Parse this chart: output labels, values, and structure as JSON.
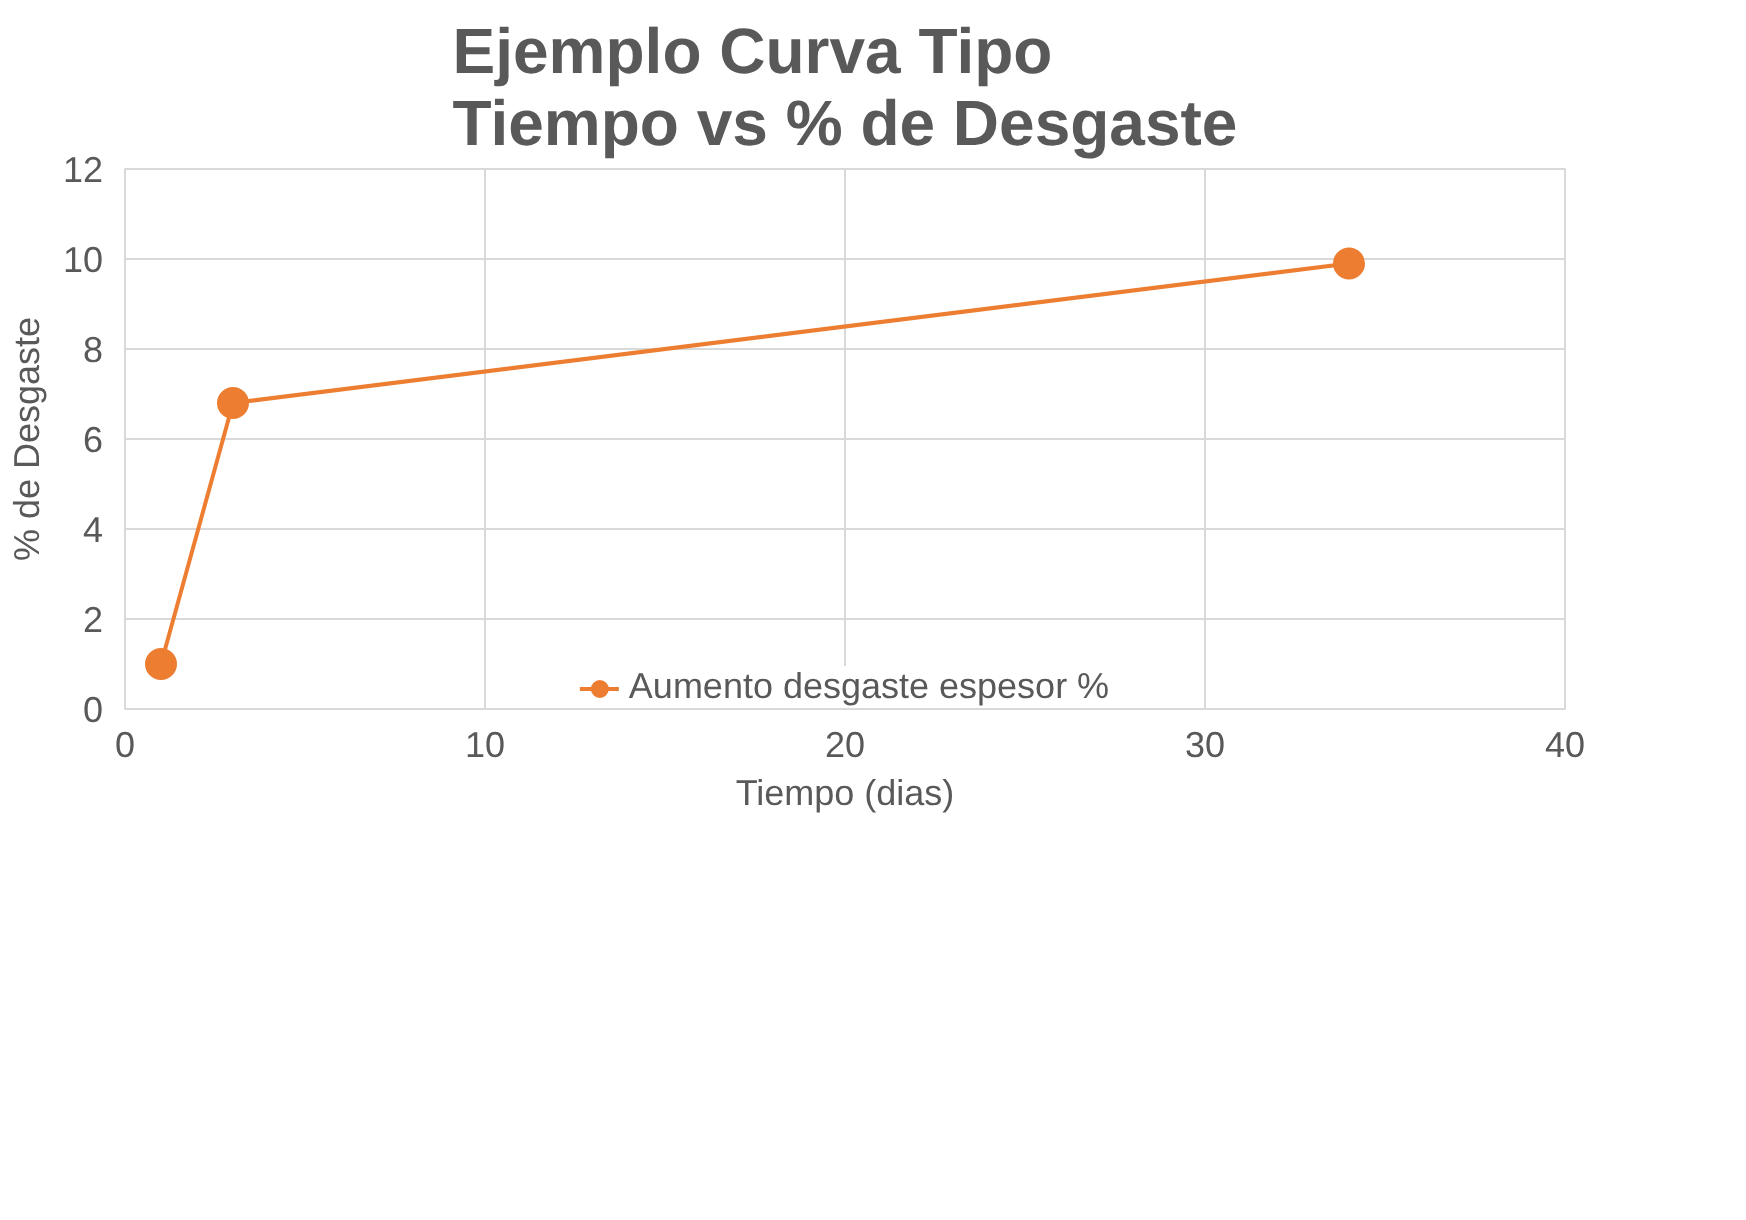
{
  "chart_data": {
    "type": "line",
    "title": "Ejemplo Curva Tipo\nTiempo vs % de Desgaste",
    "xlabel": "Tiempo (dias)",
    "ylabel": "% de Desgaste",
    "x": [
      1,
      3,
      34
    ],
    "series": [
      {
        "name": "Aumento desgaste espesor %",
        "color": "#ed7d31",
        "values": [
          1,
          6.8,
          9.9
        ]
      }
    ],
    "xlim": [
      0,
      40
    ],
    "xticks": [
      0,
      10,
      20,
      30,
      40
    ],
    "ylim": [
      0,
      12
    ],
    "yticks": [
      0,
      2,
      4,
      6,
      8,
      10,
      12
    ],
    "grid": true,
    "legend": "bottom",
    "marker": "circle",
    "line_style": "solid"
  }
}
